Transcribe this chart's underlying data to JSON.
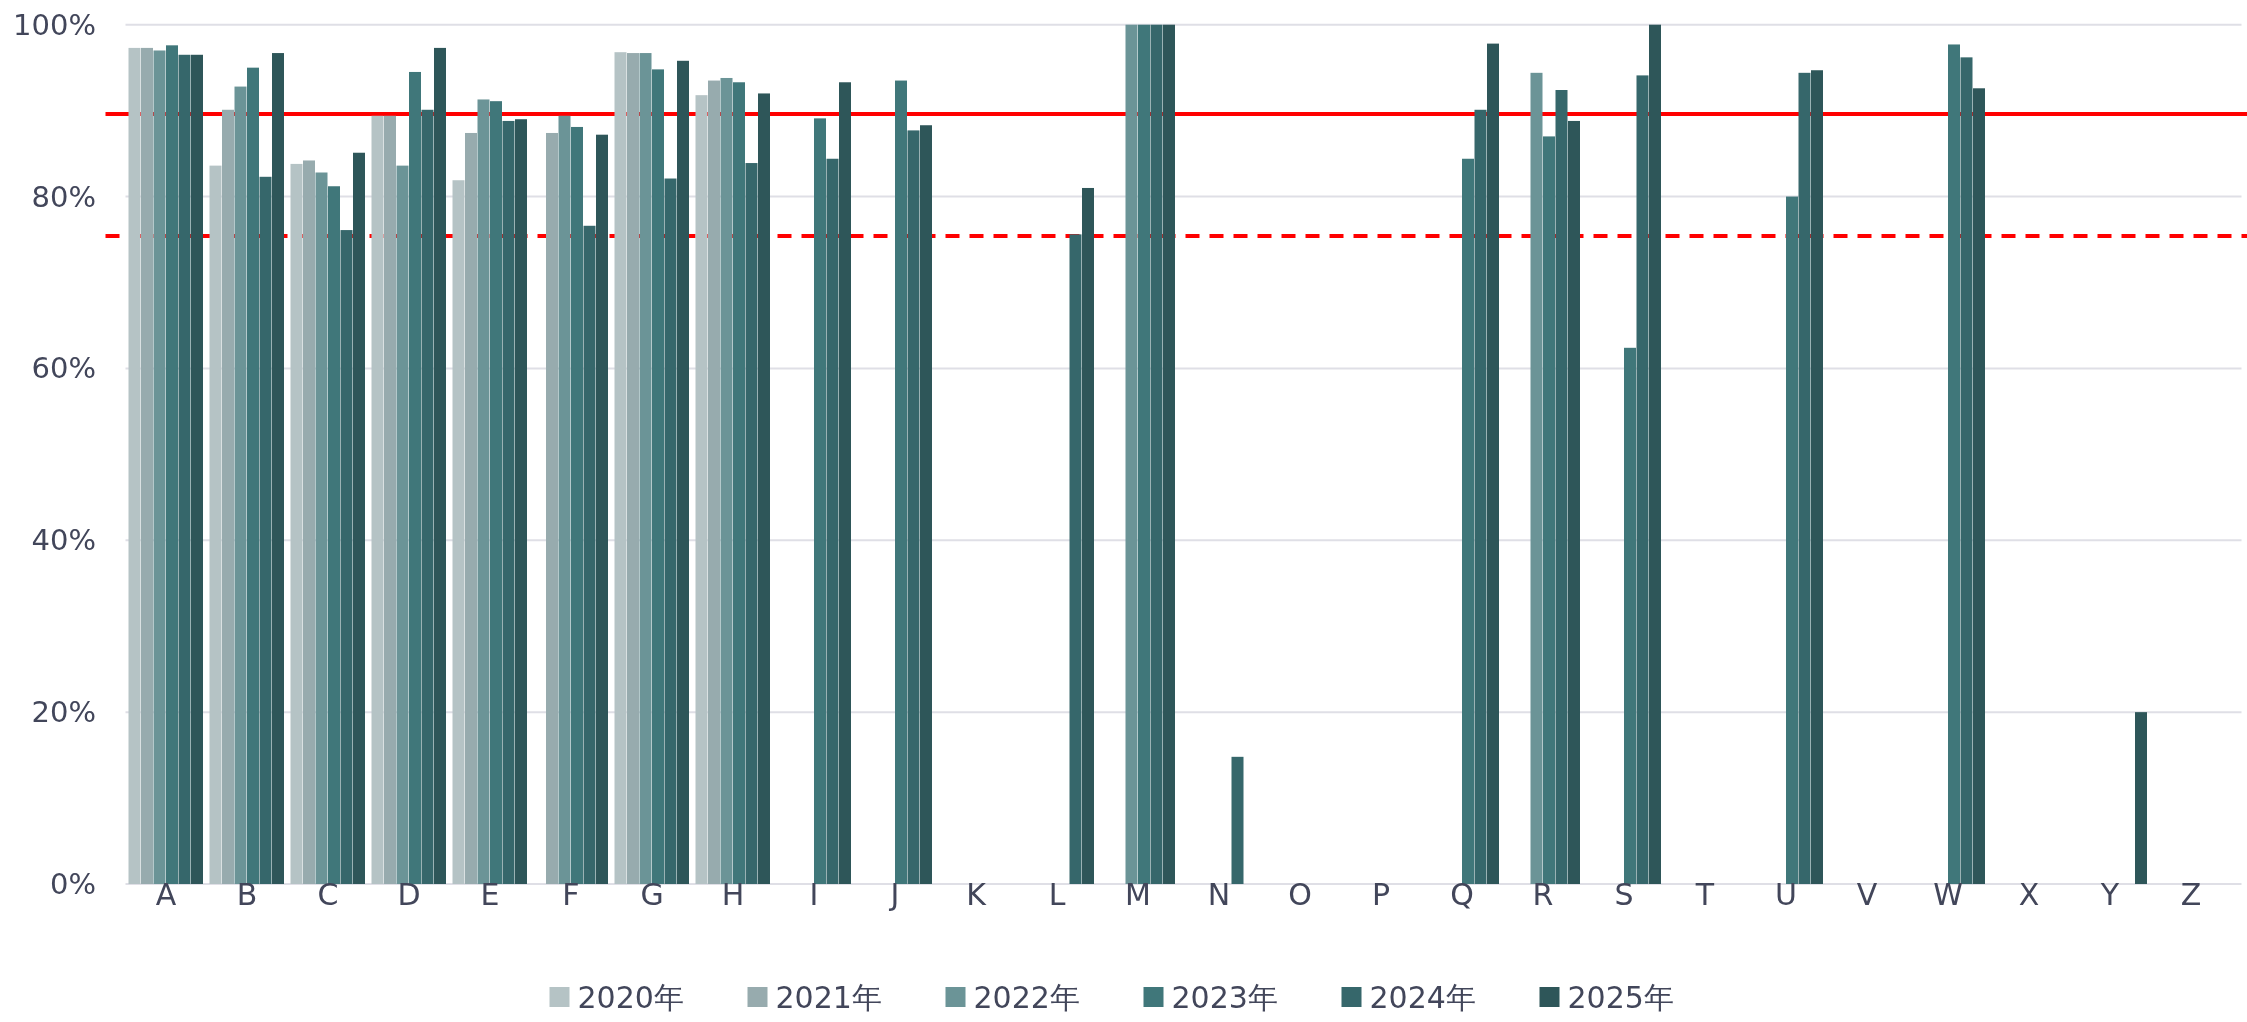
{
  "chart_data": {
    "type": "bar",
    "categories": [
      "A",
      "B",
      "C",
      "D",
      "E",
      "F",
      "G",
      "H",
      "I",
      "J",
      "K",
      "L",
      "M",
      "N",
      "O",
      "P",
      "Q",
      "R",
      "S",
      "T",
      "U",
      "V",
      "W",
      "X",
      "Y",
      "Z"
    ],
    "series": [
      {
        "name": "2020年",
        "color": "#b5c3c5",
        "values": [
          97.3,
          83.6,
          83.8,
          89.4,
          81.9,
          null,
          96.8,
          91.8,
          null,
          null,
          null,
          null,
          null,
          null,
          null,
          null,
          null,
          null,
          null,
          null,
          null,
          null,
          null,
          null,
          null,
          null
        ]
      },
      {
        "name": "2021年",
        "color": "#97abae",
        "values": [
          97.3,
          90.1,
          84.2,
          89.4,
          87.4,
          87.4,
          96.7,
          93.5,
          null,
          null,
          null,
          null,
          null,
          null,
          null,
          null,
          null,
          null,
          null,
          null,
          null,
          null,
          null,
          null,
          null,
          null
        ]
      },
      {
        "name": "2022年",
        "color": "#6b9497",
        "values": [
          97.0,
          92.8,
          82.8,
          83.6,
          91.3,
          89.4,
          96.7,
          93.8,
          null,
          null,
          null,
          null,
          100,
          null,
          null,
          null,
          null,
          94.4,
          null,
          null,
          null,
          null,
          null,
          null,
          null,
          null
        ]
      },
      {
        "name": "2023年",
        "color": "#40777a",
        "values": [
          97.6,
          95.0,
          81.2,
          94.5,
          91.1,
          88.1,
          94.8,
          93.3,
          89.1,
          93.5,
          null,
          null,
          100,
          null,
          null,
          null,
          84.4,
          87.0,
          62.4,
          null,
          80.0,
          null,
          97.7,
          null,
          null,
          null
        ]
      },
      {
        "name": "2024年",
        "color": "#36676b",
        "values": [
          96.5,
          82.3,
          76.1,
          90.1,
          88.8,
          76.6,
          82.1,
          83.9,
          84.4,
          87.7,
          null,
          75.6,
          100,
          14.8,
          null,
          null,
          90.1,
          92.4,
          94.1,
          null,
          94.4,
          null,
          96.2,
          null,
          null,
          null
        ]
      },
      {
        "name": "2025年",
        "color": "#2e5659",
        "values": [
          96.5,
          96.7,
          85.1,
          97.3,
          89.0,
          87.2,
          95.8,
          92.0,
          93.3,
          88.3,
          null,
          81.0,
          100,
          null,
          null,
          null,
          97.8,
          88.8,
          100,
          null,
          94.7,
          null,
          92.6,
          null,
          20,
          null
        ]
      }
    ],
    "ylim": [
      0,
      100
    ],
    "yticks": [
      {
        "value": 0,
        "label": "0%"
      },
      {
        "value": 20,
        "label": "20%"
      },
      {
        "value": 40,
        "label": "40%"
      },
      {
        "value": 60,
        "label": "60%"
      },
      {
        "value": 80,
        "label": "80%"
      },
      {
        "value": 100,
        "label": "100%"
      }
    ],
    "grid": "y",
    "legend": "bottom",
    "ref_lines": [
      {
        "axis": "y",
        "value": 89.6,
        "color": "#ff0000",
        "line_style": "solid"
      },
      {
        "axis": "y",
        "value": 75.4,
        "color": "#ff0000",
        "line_style": "dashed"
      }
    ]
  }
}
